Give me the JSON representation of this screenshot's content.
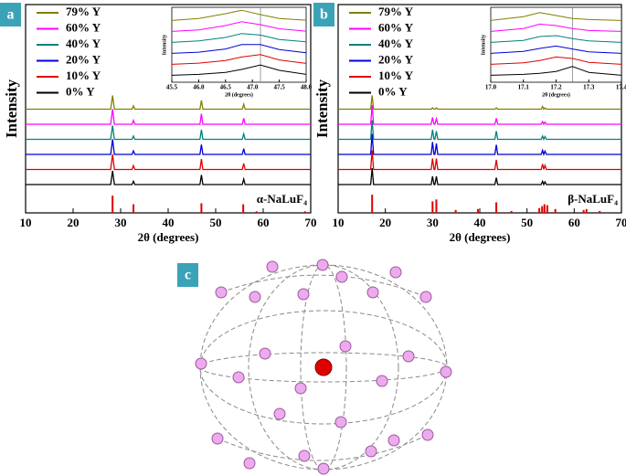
{
  "chart_data": [
    {
      "type": "line",
      "panel_label": "a",
      "xlabel": "2θ (degrees)",
      "ylabel": "Intensity",
      "xlim": [
        10,
        70
      ],
      "xticks": [
        10,
        20,
        30,
        40,
        50,
        60,
        70
      ],
      "x": [
        10,
        27.9,
        28.3,
        28.7,
        32.4,
        32.7,
        33.0,
        46.7,
        47.0,
        47.3,
        55.6,
        55.9,
        56.2,
        70
      ],
      "series": [
        {
          "name": "0% Y",
          "color": "#000000",
          "values": [
            0,
            0,
            50,
            0,
            0,
            12,
            0,
            0,
            35,
            0,
            0,
            20,
            0,
            0
          ]
        },
        {
          "name": "10% Y",
          "color": "#e00000",
          "values": [
            0,
            0,
            55,
            0,
            0,
            14,
            0,
            0,
            38,
            0,
            0,
            22,
            0,
            0
          ]
        },
        {
          "name": "20% Y",
          "color": "#0000d8",
          "values": [
            0,
            0,
            55,
            0,
            0,
            13,
            0,
            0,
            36,
            0,
            0,
            21,
            0,
            0
          ]
        },
        {
          "name": "40% Y",
          "color": "#008080",
          "values": [
            0,
            0,
            50,
            0,
            0,
            12,
            0,
            0,
            35,
            0,
            0,
            20,
            0,
            0
          ]
        },
        {
          "name": "60% Y",
          "color": "#ff00ff",
          "values": [
            0,
            0,
            55,
            0,
            0,
            14,
            0,
            0,
            38,
            0,
            0,
            22,
            0,
            0
          ]
        },
        {
          "name": "79% Y",
          "color": "#808000",
          "values": [
            0,
            0,
            50,
            0,
            0,
            12,
            0,
            0,
            32,
            0,
            0,
            18,
            0,
            0
          ]
        }
      ],
      "reference": {
        "label": "α-NaLuF₄",
        "color": "#e00000",
        "x": [
          28.3,
          32.7,
          47.0,
          55.8,
          58.6,
          68.8
        ],
        "values": [
          90,
          45,
          50,
          45,
          8,
          8
        ]
      }
    },
    {
      "type": "line",
      "xlabel": "2θ (degrees)",
      "ylabel": "Intensity",
      "xlim": [
        45.5,
        48.0
      ],
      "xticks": [
        45.5,
        {
          "value": 46,
          "label": "46.0"
        },
        46.5,
        {
          "value": 47,
          "label": "47.0"
        },
        47.5,
        {
          "value": 48,
          "label": "48.0"
        }
      ],
      "x": [
        45.5,
        46.0,
        46.5,
        46.8,
        47.15,
        47.5,
        48.0
      ],
      "series": [
        {
          "color": "#000000",
          "values": [
            5,
            8,
            15,
            25,
            40,
            22,
            8
          ]
        },
        {
          "color": "#e00000",
          "values": [
            5,
            9,
            18,
            30,
            38,
            20,
            8
          ]
        },
        {
          "color": "#0000d8",
          "values": [
            5,
            9,
            20,
            35,
            35,
            18,
            7
          ]
        },
        {
          "color": "#008080",
          "values": [
            5,
            10,
            22,
            35,
            30,
            15,
            7
          ]
        },
        {
          "color": "#ff00ff",
          "values": [
            5,
            10,
            25,
            38,
            28,
            14,
            6
          ]
        },
        {
          "color": "#808000",
          "values": [
            5,
            12,
            28,
            40,
            25,
            12,
            6
          ]
        }
      ],
      "reference_line": 47.15
    },
    {
      "type": "line",
      "panel_label": "b",
      "xlabel": "2θ (degrees)",
      "ylabel": "Intensity",
      "xlim": [
        10,
        70
      ],
      "xticks": [
        10,
        20,
        30,
        40,
        50,
        60,
        70
      ],
      "x": [
        10,
        16.9,
        17.2,
        17.5,
        29.7,
        30.0,
        30.3,
        30.5,
        30.8,
        31.1,
        43.2,
        43.5,
        43.8,
        53.0,
        53.3,
        53.55,
        53.8,
        54.1,
        70
      ],
      "series": [
        {
          "name": "0% Y",
          "color": "#000000",
          "values": [
            0,
            0,
            60,
            0,
            0,
            30,
            0,
            0,
            30,
            0,
            0,
            25,
            0,
            0,
            12,
            0,
            10,
            0,
            0
          ]
        },
        {
          "name": "10% Y",
          "color": "#e00000",
          "values": [
            0,
            0,
            70,
            0,
            0,
            40,
            0,
            0,
            40,
            0,
            0,
            35,
            0,
            0,
            20,
            0,
            15,
            0,
            0
          ]
        },
        {
          "name": "20% Y",
          "color": "#0000d8",
          "values": [
            0,
            0,
            75,
            0,
            0,
            45,
            0,
            0,
            40,
            0,
            0,
            35,
            0,
            0,
            15,
            0,
            12,
            0,
            0
          ]
        },
        {
          "name": "40% Y",
          "color": "#008080",
          "values": [
            0,
            0,
            70,
            0,
            0,
            35,
            0,
            0,
            30,
            0,
            0,
            30,
            0,
            0,
            12,
            0,
            10,
            0,
            0
          ]
        },
        {
          "name": "60% Y",
          "color": "#ff00ff",
          "values": [
            0,
            0,
            70,
            0,
            0,
            25,
            0,
            0,
            20,
            0,
            0,
            22,
            0,
            0,
            10,
            0,
            8,
            0,
            0
          ]
        },
        {
          "name": "79% Y",
          "color": "#808000",
          "values": [
            0,
            0,
            50,
            0,
            0,
            5,
            0,
            0,
            5,
            0,
            0,
            5,
            0,
            0,
            10,
            0,
            5,
            0,
            0
          ]
        }
      ],
      "reference": {
        "label": "β-NaLuF₄",
        "color": "#e00000",
        "x": [
          17.2,
          30.0,
          30.8,
          34.9,
          39.6,
          43.5,
          46.7,
          52.6,
          53.2,
          53.7,
          54.3,
          56.0,
          62.0,
          62.6,
          65.4
        ],
        "values": [
          95,
          60,
          70,
          15,
          20,
          55,
          10,
          25,
          35,
          45,
          40,
          20,
          15,
          20,
          10
        ]
      }
    },
    {
      "type": "line",
      "xlabel": "2θ (degrees)",
      "ylabel": "Intensity",
      "xlim": [
        17.0,
        17.4
      ],
      "xticks": [
        {
          "value": 17,
          "label": "17.0"
        },
        17.1,
        17.2,
        17.3,
        17.4
      ],
      "x": [
        17.0,
        17.1,
        17.15,
        17.2,
        17.25,
        17.3,
        17.4
      ],
      "series": [
        {
          "color": "#000000",
          "values": [
            5,
            8,
            12,
            18,
            35,
            15,
            5
          ]
        },
        {
          "color": "#e00000",
          "values": [
            5,
            10,
            18,
            30,
            25,
            12,
            5
          ]
        },
        {
          "color": "#0000d8",
          "values": [
            5,
            12,
            22,
            30,
            20,
            10,
            5
          ]
        },
        {
          "color": "#008080",
          "values": [
            5,
            12,
            25,
            28,
            18,
            10,
            5
          ]
        },
        {
          "color": "#ff00ff",
          "values": [
            5,
            15,
            30,
            25,
            15,
            8,
            5
          ]
        },
        {
          "color": "#808000",
          "values": [
            5,
            18,
            32,
            22,
            12,
            8,
            5
          ]
        }
      ],
      "reference_line": 17.25
    }
  ],
  "diagram": {
    "label": "c"
  }
}
